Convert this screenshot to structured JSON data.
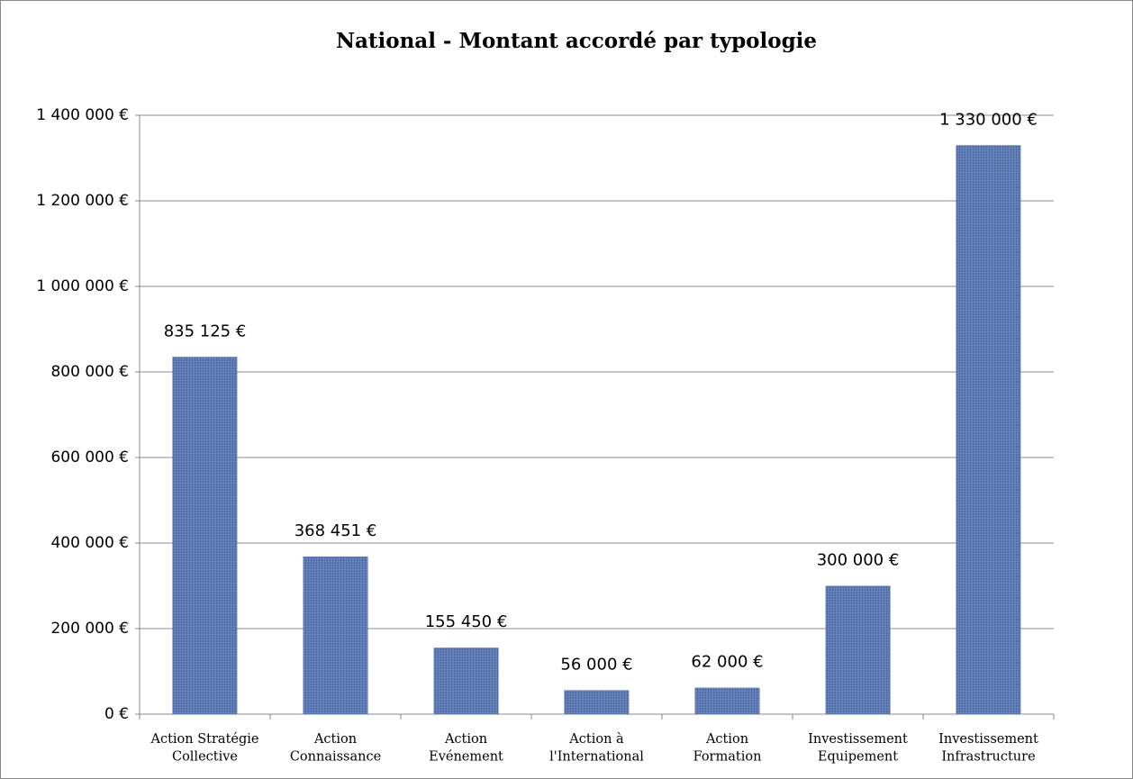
{
  "chart_data": {
    "type": "bar",
    "title": "National - Montant accordé par typologie",
    "categories": [
      "Action Stratégie\nCollective",
      "Action\nConnaissance",
      "Action\nEvénement",
      "Action à\nl'International",
      "Action\nFormation",
      "Investissement\nEquipement",
      "Investissement\nInfrastructure"
    ],
    "values": [
      835125,
      368451,
      155450,
      56000,
      62000,
      300000,
      1330000
    ],
    "value_labels": [
      "835 125 €",
      "368 451 €",
      "155 450 €",
      "56 000 €",
      "62 000 €",
      "300 000 €",
      "1 330 000 €"
    ],
    "color": "#5676b4",
    "ylim": [
      0,
      1400000
    ],
    "yticks": [
      {
        "value": 0,
        "label": "0 €"
      },
      {
        "value": 200000,
        "label": "200 000 €"
      },
      {
        "value": 400000,
        "label": "400 000 €"
      },
      {
        "value": 600000,
        "label": "600 000 €"
      },
      {
        "value": 800000,
        "label": "800 000 €"
      },
      {
        "value": 1000000,
        "label": "1 000 000 €"
      },
      {
        "value": 1200000,
        "label": "1 200 000 €"
      },
      {
        "value": 1400000,
        "label": "1 400 000 €"
      }
    ],
    "grid": true
  }
}
